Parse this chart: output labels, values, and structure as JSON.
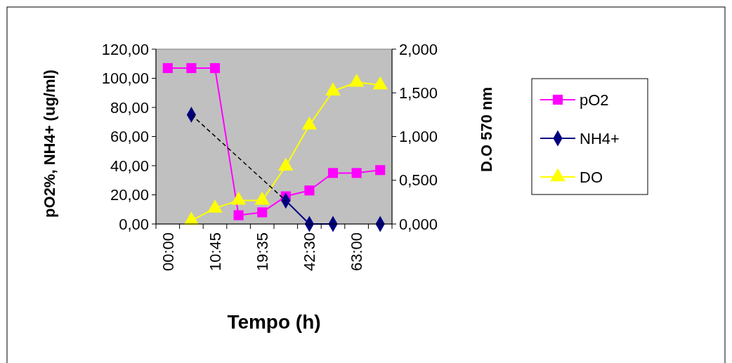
{
  "chart_data": {
    "type": "line",
    "xlabel": "Tempo (h)",
    "ylabel": "pO2%, NH4+ (ug/ml)",
    "y2label": "D.O 570 nm",
    "categories": [
      "00:00",
      null,
      "10:45",
      null,
      "19:35",
      null,
      "42:30",
      null,
      "63:00",
      null
    ],
    "ylim": [
      0,
      120
    ],
    "yticks": [
      {
        "value": 0,
        "label": "0,00"
      },
      {
        "value": 20,
        "label": "20,00"
      },
      {
        "value": 40,
        "label": "40,00"
      },
      {
        "value": 60,
        "label": "60,00"
      },
      {
        "value": 80,
        "label": "80,00"
      },
      {
        "value": 100,
        "label": "100,00"
      },
      {
        "value": 120,
        "label": "120,00"
      }
    ],
    "y2lim": [
      0,
      2
    ],
    "y2ticks": [
      {
        "value": 0,
        "label": "0,000"
      },
      {
        "value": 0.5,
        "label": "0,500"
      },
      {
        "value": 1,
        "label": "1,000"
      },
      {
        "value": 1.5,
        "label": "1,500"
      },
      {
        "value": 2,
        "label": "2,000"
      }
    ],
    "grid": false,
    "legend": "right",
    "series": [
      {
        "name": "pO2",
        "color": "#ff00ff",
        "marker": "square",
        "values": [
          107,
          107,
          107,
          6,
          8,
          19,
          23,
          35,
          35,
          37
        ]
      },
      {
        "name": "NH4+",
        "color": "#000080",
        "marker": "diamond",
        "values": [
          null,
          75,
          null,
          null,
          null,
          16,
          0,
          0,
          null,
          0
        ]
      },
      {
        "name": "DO",
        "color": "#ffff00",
        "marker": "triangle",
        "axis": "y2",
        "values": [
          null,
          0.04,
          0.18,
          0.27,
          0.27,
          0.66,
          1.13,
          1.52,
          1.62,
          1.59
        ]
      },
      {
        "color": "#000000",
        "marker": "none",
        "line_style": "dashed",
        "values": [
          null,
          75,
          null,
          null,
          null,
          16,
          null,
          null,
          null,
          null
        ]
      }
    ]
  }
}
